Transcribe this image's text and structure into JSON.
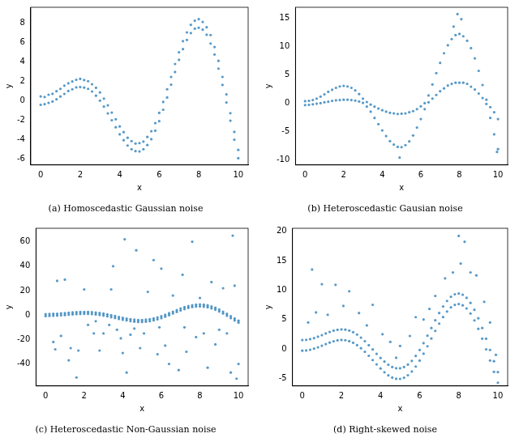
{
  "chart_data": [
    {
      "type": "scatter",
      "title": "(a) Homoscedastic Gaussian noise",
      "x_label": "x",
      "y_label": "y",
      "color": "#1f77b4",
      "grid": false,
      "xlim": [
        -0.5,
        10.5
      ],
      "xticks": [
        0,
        2,
        4,
        6,
        8,
        10
      ],
      "ylim": [
        -6.6,
        9.6
      ],
      "yticks": [
        -6,
        -4,
        -2,
        0,
        2,
        4,
        6,
        8
      ],
      "x": [
        0,
        0.2,
        0.4,
        0.6,
        0.8,
        1,
        1.2,
        1.4,
        1.6,
        1.8,
        2,
        2.2,
        2.4,
        2.6,
        2.8,
        3,
        3.2,
        3.4,
        3.6,
        3.8,
        4,
        4.2,
        4.4,
        4.6,
        4.8,
        5,
        5.2,
        5.4,
        5.6,
        5.8,
        6,
        6.2,
        6.4,
        6.6,
        6.8,
        7,
        7.2,
        7.4,
        7.6,
        7.8,
        8,
        8.2,
        8.4,
        8.6,
        8.8,
        9,
        9.2,
        9.4,
        9.6,
        9.8,
        10,
        0,
        0.2,
        0.4,
        0.6,
        0.8,
        1,
        1.2,
        1.4,
        1.6,
        1.8,
        2,
        2.2,
        2.4,
        2.6,
        2.8,
        3,
        3.2,
        3.4,
        3.6,
        3.8,
        4,
        4.2,
        4.4,
        4.6,
        4.8,
        5,
        5.2,
        5.4,
        5.6,
        5.8,
        6,
        6.2,
        6.4,
        6.6,
        6.8,
        7,
        7.2,
        7.4,
        7.6,
        7.8,
        8,
        8.2,
        8.4,
        8.6,
        8.8,
        9,
        9.2,
        9.4,
        9.6,
        9.8,
        10
      ],
      "values": [
        0.45,
        0.38,
        0.62,
        0.71,
        0.98,
        1.22,
        1.55,
        1.79,
        1.98,
        2.15,
        2.25,
        2.12,
        2.01,
        1.7,
        1.33,
        0.85,
        0.22,
        -0.47,
        -1.22,
        -1.9,
        -2.64,
        -3.22,
        -3.8,
        -4.15,
        -4.4,
        -4.35,
        -4.2,
        -3.72,
        -3.13,
        -2.3,
        -1.25,
        -0.12,
        1.18,
        2.45,
        3.78,
        4.98,
        6.12,
        7.02,
        7.8,
        8.22,
        8.38,
        8.1,
        7.55,
        6.75,
        5.52,
        4.1,
        2.45,
        0.65,
        -1.28,
        -3.2,
        -5.05,
        -0.42,
        -0.35,
        -0.22,
        -0.08,
        0.15,
        0.44,
        0.7,
        1.0,
        1.18,
        1.37,
        1.4,
        1.35,
        1.22,
        0.95,
        0.52,
        0.01,
        -0.6,
        -1.3,
        -2.0,
        -2.72,
        -3.45,
        -4.05,
        -4.6,
        -4.98,
        -5.18,
        -5.21,
        -4.98,
        -4.55,
        -3.95,
        -3.08,
        -2.1,
        -0.92,
        0.33,
        1.65,
        2.95,
        4.2,
        5.3,
        6.25,
        6.95,
        7.4,
        7.5,
        7.3,
        6.78,
        5.88,
        4.75,
        3.3,
        1.62,
        -0.18,
        -2.05,
        -4.0,
        -5.9
      ]
    },
    {
      "type": "scatter",
      "title": "(b) Heteroscedastic Gausian noise",
      "x_label": "x",
      "y_label": "y",
      "color": "#1f77b4",
      "grid": false,
      "xlim": [
        -0.5,
        10.5
      ],
      "xticks": [
        0,
        2,
        4,
        6,
        8,
        10
      ],
      "ylim": [
        -10.9,
        16.9
      ],
      "yticks": [
        -10,
        -5,
        0,
        5,
        10,
        15
      ],
      "x": [
        0,
        0.2,
        0.4,
        0.6,
        0.8,
        1,
        1.2,
        1.4,
        1.6,
        1.8,
        2,
        2.2,
        2.4,
        2.6,
        2.8,
        3,
        3.2,
        3.4,
        3.6,
        3.8,
        4,
        4.2,
        4.4,
        4.6,
        4.8,
        5,
        5.2,
        5.4,
        5.6,
        5.8,
        6,
        6.2,
        6.4,
        6.6,
        6.8,
        7,
        7.2,
        7.4,
        7.6,
        7.8,
        8,
        8.2,
        8.4,
        8.6,
        8.8,
        9,
        9.2,
        9.4,
        9.6,
        9.8,
        10,
        0,
        0.2,
        0.4,
        0.6,
        0.8,
        1,
        1.2,
        1.4,
        1.6,
        1.8,
        2,
        2.2,
        2.4,
        2.6,
        2.8,
        3,
        3.2,
        3.4,
        3.6,
        3.8,
        4,
        4.2,
        4.4,
        4.6,
        4.8,
        5,
        5.2,
        5.4,
        5.6,
        5.8,
        6,
        6.2,
        6.4,
        6.6,
        6.8,
        7,
        7.2,
        7.4,
        7.6,
        7.8,
        8,
        8.2,
        8.4,
        8.6,
        8.8,
        9,
        9.2,
        9.4,
        9.6,
        9.8,
        10,
        7.9,
        8.1,
        4.9,
        7.7,
        9.95
      ],
      "values": [
        0.35,
        0.4,
        0.55,
        0.8,
        1.15,
        1.55,
        2.0,
        2.35,
        2.7,
        2.95,
        3.05,
        2.95,
        2.7,
        2.25,
        1.6,
        0.8,
        0.2,
        -0.25,
        -0.6,
        -0.95,
        -1.25,
        -1.5,
        -1.7,
        -1.8,
        -1.9,
        -1.85,
        -1.8,
        -1.6,
        -1.4,
        -1.05,
        -0.55,
        0.0,
        1.35,
        3.3,
        5.3,
        7.1,
        8.8,
        10.2,
        11.3,
        12.0,
        12.2,
        11.8,
        11.0,
        9.7,
        7.9,
        5.7,
        3.2,
        0.6,
        -0.7,
        -1.6,
        -2.8,
        -0.35,
        -0.3,
        -0.2,
        -0.1,
        0.0,
        0.15,
        0.25,
        0.4,
        0.5,
        0.55,
        0.6,
        0.6,
        0.55,
        0.45,
        0.3,
        0.05,
        -0.6,
        -1.5,
        -2.6,
        -3.7,
        -4.8,
        -5.8,
        -6.7,
        -7.3,
        -7.7,
        -7.75,
        -7.4,
        -6.75,
        -5.7,
        -4.3,
        -2.8,
        -1.05,
        0.15,
        0.8,
        1.45,
        2.1,
        2.6,
        3.1,
        3.4,
        3.6,
        3.6,
        3.6,
        3.4,
        2.9,
        2.4,
        1.7,
        0.9,
        -0.15,
        -2.6,
        -5.5,
        -8.1,
        15.7,
        14.8,
        -9.6,
        13.5,
        -8.6
      ]
    },
    {
      "type": "scatter",
      "title": "(c) Heteroscedastic Non-Gaussian noise",
      "x_label": "x",
      "y_label": "y",
      "color": "#1f77b4",
      "grid": false,
      "xlim": [
        -0.5,
        10.5
      ],
      "xticks": [
        0,
        2,
        4,
        6,
        8,
        10
      ],
      "ylim": [
        -58,
        71
      ],
      "yticks": [
        -40,
        -20,
        0,
        20,
        40,
        60
      ],
      "x": [
        0,
        0.2,
        0.4,
        0.6,
        0.8,
        1,
        1.2,
        1.4,
        1.6,
        1.8,
        2,
        2.2,
        2.4,
        2.6,
        2.8,
        3,
        3.2,
        3.4,
        3.6,
        3.8,
        4,
        4.2,
        4.4,
        4.6,
        4.8,
        5,
        5.2,
        5.4,
        5.6,
        5.8,
        6,
        6.2,
        6.4,
        6.6,
        6.8,
        7,
        7.2,
        7.4,
        7.6,
        7.8,
        8,
        8.2,
        8.4,
        8.6,
        8.8,
        9,
        9.2,
        9.4,
        9.6,
        9.8,
        10,
        0,
        0.2,
        0.4,
        0.6,
        0.8,
        1,
        1.2,
        1.4,
        1.6,
        1.8,
        2,
        2.2,
        2.4,
        2.6,
        2.8,
        3,
        3.2,
        3.4,
        3.6,
        3.8,
        4,
        4.2,
        4.4,
        4.6,
        4.8,
        5,
        5.2,
        5.4,
        5.6,
        5.8,
        6,
        6.2,
        6.4,
        6.6,
        6.8,
        7,
        7.2,
        7.4,
        7.6,
        7.8,
        8,
        8.2,
        8.4,
        8.6,
        8.8,
        9,
        9.2,
        9.4,
        9.6,
        9.8,
        10,
        0.4,
        0.5,
        0.6,
        0.8,
        1.0,
        1.2,
        1.3,
        1.6,
        1.7,
        2.0,
        2.2,
        2.5,
        2.6,
        2.8,
        3.0,
        3.3,
        3.4,
        3.5,
        3.7,
        3.9,
        4.0,
        4.1,
        4.2,
        4.4,
        4.6,
        4.7,
        4.9,
        5.1,
        5.3,
        5.6,
        5.8,
        5.9,
        6.0,
        6.2,
        6.4,
        6.6,
        6.9,
        7.1,
        7.2,
        7.3,
        7.6,
        7.8,
        8.0,
        8.2,
        8.4,
        8.6,
        8.8,
        9.0,
        9.2,
        9.4,
        9.6,
        9.7,
        9.8,
        9.9,
        10.0
      ],
      "values": [
        0.8,
        0.9,
        1.0,
        1.1,
        1.4,
        1.6,
        1.9,
        2.2,
        2.4,
        2.5,
        2.6,
        2.6,
        2.4,
        2.1,
        1.7,
        1.2,
        0.6,
        -0.1,
        -0.8,
        -1.5,
        -2.2,
        -2.9,
        -3.4,
        -3.8,
        -4.0,
        -4.0,
        -3.8,
        -3.4,
        -2.7,
        -1.9,
        -0.9,
        0.3,
        1.5,
        2.8,
        4.1,
        5.4,
        6.5,
        7.4,
        8.1,
        8.6,
        8.7,
        8.5,
        8.0,
        7.1,
        6.0,
        4.5,
        2.8,
        1.0,
        -0.9,
        -2.8,
        -4.6,
        -0.8,
        -0.7,
        -0.6,
        -0.4,
        -0.2,
        0.0,
        0.3,
        0.6,
        0.8,
        0.9,
        1.0,
        1.0,
        0.8,
        0.5,
        0.1,
        -0.4,
        -1.0,
        -1.7,
        -2.4,
        -3.1,
        -3.8,
        -4.4,
        -5.0,
        -5.4,
        -5.6,
        -5.6,
        -5.4,
        -5.0,
        -4.3,
        -3.5,
        -2.5,
        -1.3,
        -0.1,
        1.3,
        2.6,
        3.8,
        4.9,
        5.9,
        6.6,
        7.0,
        7.1,
        6.9,
        6.4,
        5.5,
        4.4,
        2.9,
        1.3,
        -0.6,
        -2.5,
        -4.4,
        -6.2,
        -22,
        -28,
        28,
        -17,
        29,
        -37,
        -27,
        -51,
        -29,
        21,
        -8,
        -15,
        -5,
        -29,
        -15,
        -8,
        21,
        40,
        -12,
        -19,
        -31,
        62,
        -47,
        -16,
        -11,
        53,
        -27,
        -15,
        19,
        45,
        -32,
        -10,
        38,
        -25,
        -40,
        16,
        -45,
        33,
        -10,
        -30,
        60,
        -18,
        14,
        -15,
        -43,
        27,
        -24,
        -12,
        22,
        -15,
        -47,
        65,
        24,
        -52,
        -40
      ]
    },
    {
      "type": "scatter",
      "title": "(d) Right-skewed noise",
      "x_label": "x",
      "y_label": "y",
      "color": "#1f77b4",
      "grid": false,
      "xlim": [
        -0.5,
        10.5
      ],
      "xticks": [
        0,
        2,
        4,
        6,
        8,
        10
      ],
      "ylim": [
        -6.3,
        20.5
      ],
      "yticks": [
        -5,
        0,
        5,
        10,
        15,
        20
      ],
      "x": [
        0,
        0.2,
        0.4,
        0.6,
        0.8,
        1,
        1.2,
        1.4,
        1.6,
        1.8,
        2,
        2.2,
        2.4,
        2.6,
        2.8,
        3,
        3.2,
        3.4,
        3.6,
        3.8,
        4,
        4.2,
        4.4,
        4.6,
        4.8,
        5,
        5.2,
        5.4,
        5.6,
        5.8,
        6,
        6.2,
        6.4,
        6.6,
        6.8,
        7,
        7.2,
        7.4,
        7.6,
        7.8,
        8,
        8.2,
        8.4,
        8.6,
        8.8,
        9,
        9.2,
        9.4,
        9.6,
        9.8,
        10,
        0,
        0.2,
        0.4,
        0.6,
        0.8,
        1,
        1.2,
        1.4,
        1.6,
        1.8,
        2,
        2.2,
        2.4,
        2.6,
        2.8,
        3,
        3.2,
        3.4,
        3.6,
        3.8,
        4,
        4.2,
        4.4,
        4.6,
        4.8,
        5,
        5.2,
        5.4,
        5.6,
        5.8,
        6,
        6.2,
        6.4,
        6.6,
        6.8,
        7,
        7.2,
        7.4,
        7.6,
        7.8,
        8,
        8.2,
        8.4,
        8.6,
        8.8,
        9,
        9.2,
        9.4,
        9.6,
        9.8,
        10,
        0.3,
        0.5,
        0.7,
        1.0,
        1.3,
        1.7,
        2.1,
        2.4,
        2.9,
        3.3,
        3.6,
        4.1,
        4.5,
        5.0,
        5.5,
        5.8,
        6.2,
        6.8,
        7.3,
        7.7,
        8.0,
        8.1,
        8.3,
        8.6,
        8.9,
        9.3,
        9.6,
        9.9,
        4.8,
        6.5
      ],
      "values": [
        -0.3,
        -0.26,
        -0.14,
        0.04,
        0.27,
        0.54,
        0.82,
        1.08,
        1.3,
        1.45,
        1.52,
        1.48,
        1.32,
        1.04,
        0.64,
        0.12,
        -0.49,
        -1.17,
        -1.89,
        -2.63,
        -3.33,
        -3.96,
        -4.49,
        -4.87,
        -5.08,
        -5.09,
        -4.89,
        -4.47,
        -3.84,
        -2.99,
        -1.98,
        -0.82,
        0.45,
        1.76,
        3.06,
        4.3,
        5.41,
        6.35,
        7.06,
        7.49,
        7.62,
        7.41,
        6.88,
        6.02,
        4.85,
        3.41,
        1.75,
        -0.07,
        -1.97,
        -3.89,
        -5.74,
        1.5,
        1.54,
        1.66,
        1.84,
        2.07,
        2.34,
        2.62,
        2.88,
        3.1,
        3.25,
        3.32,
        3.28,
        3.12,
        2.84,
        2.44,
        1.92,
        1.31,
        0.63,
        -0.09,
        -0.83,
        -1.53,
        -2.16,
        -2.69,
        -3.07,
        -3.28,
        -3.29,
        -3.09,
        -2.67,
        -2.04,
        -1.19,
        -0.18,
        0.98,
        2.25,
        3.56,
        4.86,
        6.1,
        7.21,
        8.15,
        8.86,
        9.29,
        9.42,
        9.21,
        8.68,
        7.82,
        6.65,
        5.21,
        3.55,
        1.73,
        -0.17,
        -2.09,
        -3.94,
        4.5,
        13.5,
        6.2,
        11.0,
        5.8,
        10.9,
        7.3,
        9.8,
        6.1,
        4.0,
        7.5,
        2.5,
        1.2,
        0.5,
        2.2,
        5.4,
        5.0,
        9.0,
        12.0,
        13.0,
        19.2,
        14.5,
        18.2,
        13.0,
        12.5,
        8.0,
        4.5,
        -1.0,
        -1.5,
        6.8
      ]
    }
  ]
}
